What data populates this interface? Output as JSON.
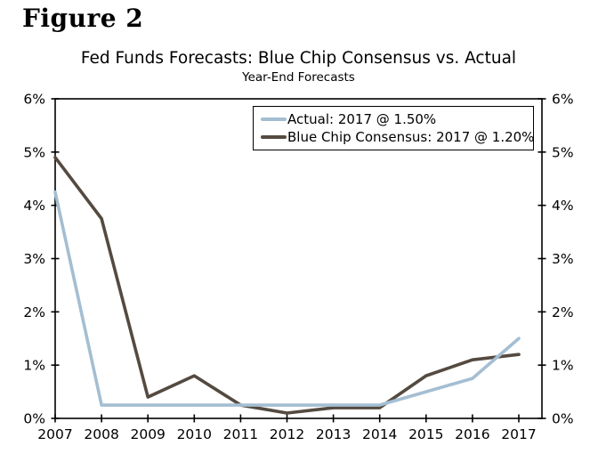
{
  "figure_label": "Figure 2",
  "chart_data": {
    "type": "line",
    "title": "Fed Funds Forecasts: Blue Chip Consensus vs. Actual",
    "subtitle": "Year-End Forecasts",
    "categories": [
      "2007",
      "2008",
      "2009",
      "2010",
      "2011",
      "2012",
      "2013",
      "2014",
      "2015",
      "2016",
      "2017"
    ],
    "series": [
      {
        "name": "Actual",
        "legend_label": "Actual: 2017 @ 1.50%",
        "color": "#a4bed2",
        "values": [
          4.25,
          0.25,
          0.25,
          0.25,
          0.25,
          0.25,
          0.25,
          0.25,
          0.5,
          0.75,
          1.5
        ]
      },
      {
        "name": "Blue Chip Consensus",
        "legend_label": "Blue Chip Consensus: 2017 @ 1.20%",
        "color": "#544a40",
        "values": [
          4.9,
          3.75,
          0.4,
          0.8,
          0.25,
          0.1,
          0.2,
          0.2,
          0.8,
          1.1,
          1.2
        ]
      }
    ],
    "ylim": [
      0,
      6
    ],
    "y_tick_labels": [
      "0%",
      "1%",
      "2%",
      "3%",
      "4%",
      "5%",
      "6%"
    ],
    "y_axis_sides": "both",
    "xlabel": "",
    "ylabel": "",
    "grid": false,
    "legend_position": "top-center-inside",
    "axis_color": "#000000",
    "background_color": "#ffffff"
  }
}
